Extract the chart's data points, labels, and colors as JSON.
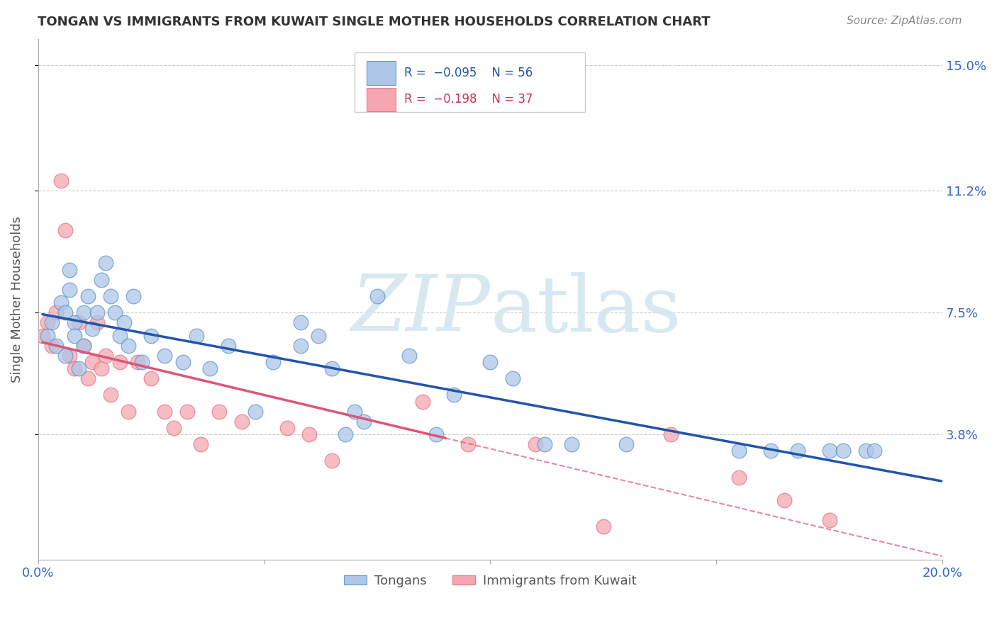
{
  "title": "TONGAN VS IMMIGRANTS FROM KUWAIT SINGLE MOTHER HOUSEHOLDS CORRELATION CHART",
  "source": "Source: ZipAtlas.com",
  "ylabel": "Single Mother Households",
  "xlim": [
    0.0,
    0.2
  ],
  "ylim": [
    0.0,
    0.158
  ],
  "xticks": [
    0.0,
    0.05,
    0.1,
    0.15,
    0.2
  ],
  "xticklabels": [
    "0.0%",
    "",
    "",
    "",
    "20.0%"
  ],
  "yticks": [
    0.038,
    0.075,
    0.112,
    0.15
  ],
  "yticklabels": [
    "3.8%",
    "7.5%",
    "11.2%",
    "15.0%"
  ],
  "legend_entries": [
    "Tongans",
    "Immigrants from Kuwait"
  ],
  "blue_color": "#aec6e8",
  "pink_color": "#f4a7b0",
  "blue_edge_color": "#6699cc",
  "pink_edge_color": "#e87a8a",
  "blue_line_color": "#2255aa",
  "pink_line_color": "#dd5577",
  "watermark_color": "#d8e8f0",
  "blue_scatter_x": [
    0.002,
    0.003,
    0.004,
    0.005,
    0.006,
    0.006,
    0.007,
    0.007,
    0.008,
    0.008,
    0.009,
    0.01,
    0.01,
    0.011,
    0.012,
    0.013,
    0.014,
    0.015,
    0.016,
    0.017,
    0.018,
    0.019,
    0.02,
    0.021,
    0.023,
    0.025,
    0.028,
    0.032,
    0.035,
    0.038,
    0.042,
    0.048,
    0.052,
    0.058,
    0.062,
    0.07,
    0.075,
    0.082,
    0.088,
    0.092,
    0.1,
    0.105,
    0.112,
    0.118,
    0.13,
    0.155,
    0.162,
    0.168,
    0.175,
    0.178,
    0.183,
    0.185,
    0.058,
    0.065,
    0.068,
    0.072
  ],
  "blue_scatter_y": [
    0.068,
    0.072,
    0.065,
    0.078,
    0.075,
    0.062,
    0.082,
    0.088,
    0.072,
    0.068,
    0.058,
    0.075,
    0.065,
    0.08,
    0.07,
    0.075,
    0.085,
    0.09,
    0.08,
    0.075,
    0.068,
    0.072,
    0.065,
    0.08,
    0.06,
    0.068,
    0.062,
    0.06,
    0.068,
    0.058,
    0.065,
    0.045,
    0.06,
    0.065,
    0.068,
    0.045,
    0.08,
    0.062,
    0.038,
    0.05,
    0.06,
    0.055,
    0.035,
    0.035,
    0.035,
    0.033,
    0.033,
    0.033,
    0.033,
    0.033,
    0.033,
    0.033,
    0.072,
    0.058,
    0.038,
    0.042
  ],
  "pink_scatter_x": [
    0.001,
    0.002,
    0.003,
    0.004,
    0.005,
    0.006,
    0.007,
    0.008,
    0.009,
    0.01,
    0.011,
    0.012,
    0.013,
    0.014,
    0.015,
    0.016,
    0.018,
    0.02,
    0.022,
    0.025,
    0.028,
    0.03,
    0.033,
    0.036,
    0.04,
    0.045,
    0.055,
    0.06,
    0.065,
    0.085,
    0.095,
    0.11,
    0.125,
    0.14,
    0.155,
    0.165,
    0.175
  ],
  "pink_scatter_y": [
    0.068,
    0.072,
    0.065,
    0.075,
    0.115,
    0.1,
    0.062,
    0.058,
    0.072,
    0.065,
    0.055,
    0.06,
    0.072,
    0.058,
    0.062,
    0.05,
    0.06,
    0.045,
    0.06,
    0.055,
    0.045,
    0.04,
    0.045,
    0.035,
    0.045,
    0.042,
    0.04,
    0.038,
    0.03,
    0.048,
    0.035,
    0.035,
    0.01,
    0.038,
    0.025,
    0.018,
    0.012
  ]
}
